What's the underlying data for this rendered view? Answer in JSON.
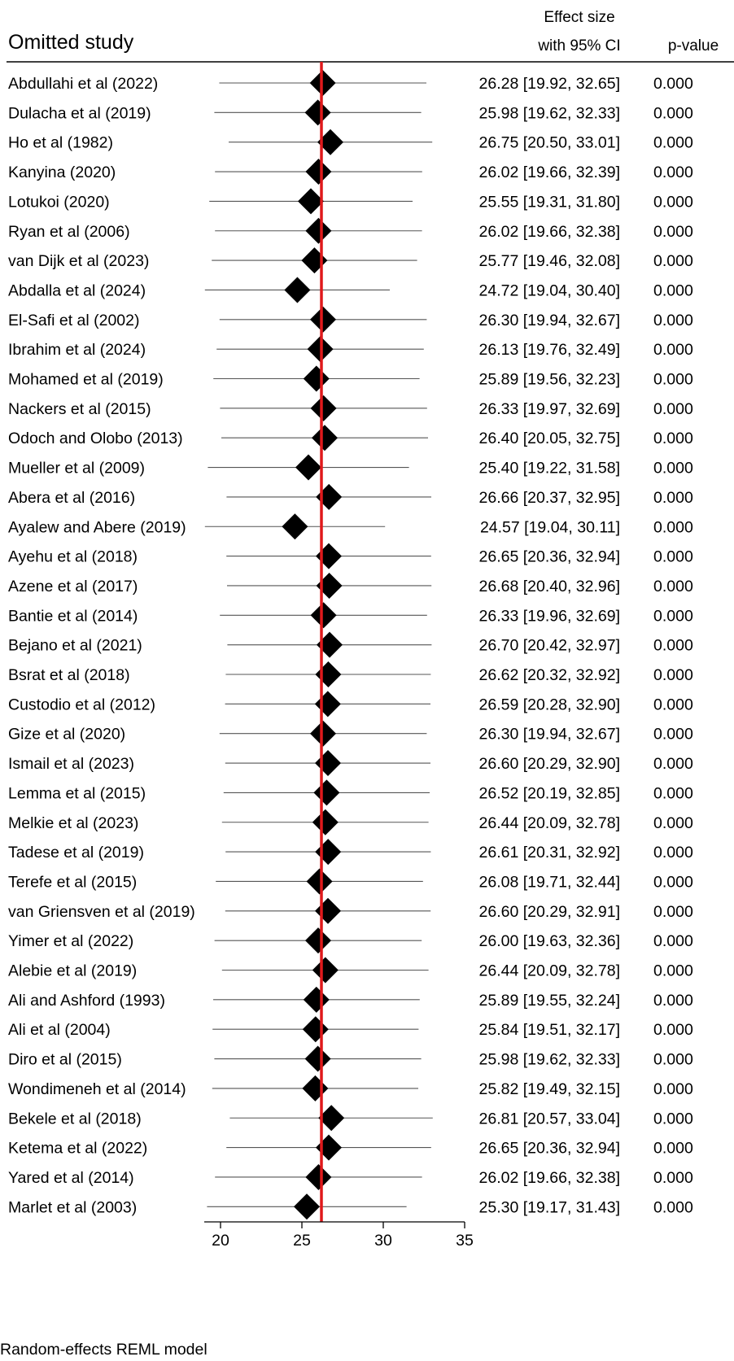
{
  "chart_data": {
    "type": "forest",
    "title": "Omitted study",
    "header_effect_line1": "Effect size",
    "header_effect_line2": "with 95% CI",
    "header_pvalue": "p-value",
    "footnote": "Random-effects REML model",
    "xlim": [
      19,
      35
    ],
    "xticks": [
      20,
      25,
      30,
      35
    ],
    "reference_line": 26.2,
    "reference_color": "#e0191b",
    "marker_color": "#000000",
    "rows": [
      {
        "study": "Abdullahi et al (2022)",
        "es": 26.28,
        "lo": 19.92,
        "hi": 32.65,
        "ci_text": "26.28 [19.92, 32.65]",
        "p": "0.000"
      },
      {
        "study": "Dulacha et al (2019)",
        "es": 25.98,
        "lo": 19.62,
        "hi": 32.33,
        "ci_text": "25.98 [19.62, 32.33]",
        "p": "0.000"
      },
      {
        "study": "Ho et al (1982)",
        "es": 26.75,
        "lo": 20.5,
        "hi": 33.01,
        "ci_text": "26.75 [20.50, 33.01]",
        "p": "0.000"
      },
      {
        "study": "Kanyina (2020)",
        "es": 26.02,
        "lo": 19.66,
        "hi": 32.39,
        "ci_text": "26.02 [19.66, 32.39]",
        "p": "0.000"
      },
      {
        "study": "Lotukoi (2020)",
        "es": 25.55,
        "lo": 19.31,
        "hi": 31.8,
        "ci_text": "25.55 [19.31, 31.80]",
        "p": "0.000"
      },
      {
        "study": "Ryan et al (2006)",
        "es": 26.02,
        "lo": 19.66,
        "hi": 32.38,
        "ci_text": "26.02 [19.66, 32.38]",
        "p": "0.000"
      },
      {
        "study": "van Dijk et al (2023)",
        "es": 25.77,
        "lo": 19.46,
        "hi": 32.08,
        "ci_text": "25.77 [19.46, 32.08]",
        "p": "0.000"
      },
      {
        "study": "Abdalla et al (2024)",
        "es": 24.72,
        "lo": 19.04,
        "hi": 30.4,
        "ci_text": "24.72 [19.04, 30.40]",
        "p": "0.000"
      },
      {
        "study": "El-Safi et al (2002)",
        "es": 26.3,
        "lo": 19.94,
        "hi": 32.67,
        "ci_text": "26.30 [19.94, 32.67]",
        "p": "0.000"
      },
      {
        "study": "Ibrahim et al (2024)",
        "es": 26.13,
        "lo": 19.76,
        "hi": 32.49,
        "ci_text": "26.13 [19.76, 32.49]",
        "p": "0.000"
      },
      {
        "study": "Mohamed et al (2019)",
        "es": 25.89,
        "lo": 19.56,
        "hi": 32.23,
        "ci_text": "25.89 [19.56, 32.23]",
        "p": "0.000"
      },
      {
        "study": "Nackers et al (2015)",
        "es": 26.33,
        "lo": 19.97,
        "hi": 32.69,
        "ci_text": "26.33 [19.97, 32.69]",
        "p": "0.000"
      },
      {
        "study": "Odoch and Olobo (2013)",
        "es": 26.4,
        "lo": 20.05,
        "hi": 32.75,
        "ci_text": "26.40 [20.05, 32.75]",
        "p": "0.000"
      },
      {
        "study": "Mueller et al (2009)",
        "es": 25.4,
        "lo": 19.22,
        "hi": 31.58,
        "ci_text": "25.40 [19.22, 31.58]",
        "p": "0.000"
      },
      {
        "study": "Abera et al (2016)",
        "es": 26.66,
        "lo": 20.37,
        "hi": 32.95,
        "ci_text": "26.66 [20.37, 32.95]",
        "p": "0.000"
      },
      {
        "study": "Ayalew and Abere (2019)",
        "es": 24.57,
        "lo": 19.04,
        "hi": 30.11,
        "ci_text": "24.57 [19.04, 30.11]",
        "p": "0.000"
      },
      {
        "study": "Ayehu et al (2018)",
        "es": 26.65,
        "lo": 20.36,
        "hi": 32.94,
        "ci_text": "26.65 [20.36, 32.94]",
        "p": "0.000"
      },
      {
        "study": "Azene et al (2017)",
        "es": 26.68,
        "lo": 20.4,
        "hi": 32.96,
        "ci_text": "26.68 [20.40, 32.96]",
        "p": "0.000"
      },
      {
        "study": "Bantie et al (2014)",
        "es": 26.33,
        "lo": 19.96,
        "hi": 32.69,
        "ci_text": "26.33 [19.96, 32.69]",
        "p": "0.000"
      },
      {
        "study": "Bejano et al (2021)",
        "es": 26.7,
        "lo": 20.42,
        "hi": 32.97,
        "ci_text": "26.70 [20.42, 32.97]",
        "p": "0.000"
      },
      {
        "study": "Bsrat et al (2018)",
        "es": 26.62,
        "lo": 20.32,
        "hi": 32.92,
        "ci_text": "26.62 [20.32, 32.92]",
        "p": "0.000"
      },
      {
        "study": "Custodio et al (2012)",
        "es": 26.59,
        "lo": 20.28,
        "hi": 32.9,
        "ci_text": "26.59 [20.28, 32.90]",
        "p": "0.000"
      },
      {
        "study": "Gize et al (2020)",
        "es": 26.3,
        "lo": 19.94,
        "hi": 32.67,
        "ci_text": "26.30 [19.94, 32.67]",
        "p": "0.000"
      },
      {
        "study": "Ismail et al (2023)",
        "es": 26.6,
        "lo": 20.29,
        "hi": 32.9,
        "ci_text": "26.60 [20.29, 32.90]",
        "p": "0.000"
      },
      {
        "study": "Lemma et al (2015)",
        "es": 26.52,
        "lo": 20.19,
        "hi": 32.85,
        "ci_text": "26.52 [20.19, 32.85]",
        "p": "0.000"
      },
      {
        "study": "Melkie et al (2023)",
        "es": 26.44,
        "lo": 20.09,
        "hi": 32.78,
        "ci_text": "26.44 [20.09, 32.78]",
        "p": "0.000"
      },
      {
        "study": "Tadese et al (2019)",
        "es": 26.61,
        "lo": 20.31,
        "hi": 32.92,
        "ci_text": "26.61 [20.31, 32.92]",
        "p": "0.000"
      },
      {
        "study": "Terefe et al (2015)",
        "es": 26.08,
        "lo": 19.71,
        "hi": 32.44,
        "ci_text": "26.08 [19.71, 32.44]",
        "p": "0.000"
      },
      {
        "study": "van Griensven et al (2019)",
        "es": 26.6,
        "lo": 20.29,
        "hi": 32.91,
        "ci_text": "26.60 [20.29, 32.91]",
        "p": "0.000"
      },
      {
        "study": "Yimer et al (2022)",
        "es": 26.0,
        "lo": 19.63,
        "hi": 32.36,
        "ci_text": "26.00 [19.63, 32.36]",
        "p": "0.000"
      },
      {
        "study": "Alebie et al (2019)",
        "es": 26.44,
        "lo": 20.09,
        "hi": 32.78,
        "ci_text": "26.44 [20.09, 32.78]",
        "p": "0.000"
      },
      {
        "study": "Ali and Ashford (1993)",
        "es": 25.89,
        "lo": 19.55,
        "hi": 32.24,
        "ci_text": "25.89 [19.55, 32.24]",
        "p": "0.000"
      },
      {
        "study": "Ali et al (2004)",
        "es": 25.84,
        "lo": 19.51,
        "hi": 32.17,
        "ci_text": "25.84 [19.51, 32.17]",
        "p": "0.000"
      },
      {
        "study": "Diro et al (2015)",
        "es": 25.98,
        "lo": 19.62,
        "hi": 32.33,
        "ci_text": "25.98 [19.62, 32.33]",
        "p": "0.000"
      },
      {
        "study": "Wondimeneh et al (2014)",
        "es": 25.82,
        "lo": 19.49,
        "hi": 32.15,
        "ci_text": "25.82 [19.49, 32.15]",
        "p": "0.000"
      },
      {
        "study": "Bekele et al (2018)",
        "es": 26.81,
        "lo": 20.57,
        "hi": 33.04,
        "ci_text": "26.81 [20.57, 33.04]",
        "p": "0.000"
      },
      {
        "study": "Ketema et al (2022)",
        "es": 26.65,
        "lo": 20.36,
        "hi": 32.94,
        "ci_text": "26.65 [20.36, 32.94]",
        "p": "0.000"
      },
      {
        "study": "Yared et al (2014)",
        "es": 26.02,
        "lo": 19.66,
        "hi": 32.38,
        "ci_text": "26.02 [19.66, 32.38]",
        "p": "0.000"
      },
      {
        "study": "Marlet et al (2003)",
        "es": 25.3,
        "lo": 19.17,
        "hi": 31.43,
        "ci_text": "25.30 [19.17, 31.43]",
        "p": "0.000"
      }
    ]
  }
}
